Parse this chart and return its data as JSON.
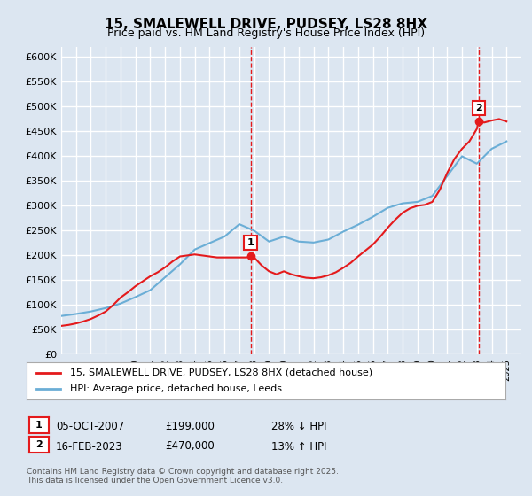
{
  "title": "15, SMALEWELL DRIVE, PUDSEY, LS28 8HX",
  "subtitle": "Price paid vs. HM Land Registry's House Price Index (HPI)",
  "xlabel": "",
  "ylabel": "",
  "ylim": [
    0,
    620000
  ],
  "yticks": [
    0,
    50000,
    100000,
    150000,
    200000,
    250000,
    300000,
    350000,
    400000,
    450000,
    500000,
    550000,
    600000
  ],
  "ytick_labels": [
    "£0",
    "£50K",
    "£100K",
    "£150K",
    "£200K",
    "£250K",
    "£300K",
    "£350K",
    "£400K",
    "£450K",
    "£500K",
    "£550K",
    "£600K"
  ],
  "background_color": "#dce6f1",
  "plot_bg_color": "#dce6f1",
  "grid_color": "#ffffff",
  "hpi_color": "#6baed6",
  "price_color": "#e41a1c",
  "annotation_box_color": "#e41a1c",
  "legend_label_price": "15, SMALEWELL DRIVE, PUDSEY, LS28 8HX (detached house)",
  "legend_label_hpi": "HPI: Average price, detached house, Leeds",
  "sale1_label": "1",
  "sale1_date": "05-OCT-2007",
  "sale1_price": "£199,000",
  "sale1_hpi": "28% ↓ HPI",
  "sale2_label": "2",
  "sale2_date": "16-FEB-2023",
  "sale2_price": "£470,000",
  "sale2_hpi": "13% ↑ HPI",
  "footer": "Contains HM Land Registry data © Crown copyright and database right 2025.\nThis data is licensed under the Open Government Licence v3.0.",
  "sale1_x": 2007.76,
  "sale1_y": 199000,
  "sale2_x": 2023.12,
  "sale2_y": 470000,
  "xmin": 1995,
  "xmax": 2026,
  "hpi_x": [
    1995,
    1996,
    1997,
    1998,
    1999,
    2000,
    2001,
    2002,
    2003,
    2004,
    2005,
    2006,
    2007,
    2008,
    2009,
    2010,
    2011,
    2012,
    2013,
    2014,
    2015,
    2016,
    2017,
    2018,
    2019,
    2020,
    2021,
    2022,
    2023,
    2024,
    2025
  ],
  "hpi_y": [
    78000,
    82000,
    87000,
    94000,
    103000,
    116000,
    130000,
    156000,
    182000,
    212000,
    225000,
    238000,
    263000,
    250000,
    228000,
    238000,
    228000,
    226000,
    232000,
    248000,
    262000,
    278000,
    296000,
    305000,
    308000,
    320000,
    360000,
    400000,
    385000,
    415000,
    430000
  ],
  "price_x": [
    1995.0,
    1995.5,
    1996.0,
    1996.5,
    1997.0,
    1997.5,
    1998.0,
    1998.5,
    1999.0,
    1999.5,
    2000.0,
    2000.5,
    2001.0,
    2001.5,
    2002.0,
    2002.5,
    2003.0,
    2003.5,
    2004.0,
    2004.5,
    2005.0,
    2005.5,
    2006.0,
    2006.5,
    2007.0,
    2007.5,
    2007.76,
    2008.0,
    2008.5,
    2009.0,
    2009.5,
    2010.0,
    2010.5,
    2011.0,
    2011.5,
    2012.0,
    2012.5,
    2013.0,
    2013.5,
    2014.0,
    2014.5,
    2015.0,
    2015.5,
    2016.0,
    2016.5,
    2017.0,
    2017.5,
    2018.0,
    2018.5,
    2019.0,
    2019.5,
    2020.0,
    2020.5,
    2021.0,
    2021.5,
    2022.0,
    2022.5,
    2023.0,
    2023.12,
    2023.5,
    2024.0,
    2024.5,
    2025.0
  ],
  "price_y": [
    58000,
    60000,
    63000,
    67000,
    72000,
    79000,
    87000,
    100000,
    115000,
    126000,
    138000,
    148000,
    158000,
    166000,
    176000,
    188000,
    198000,
    200000,
    202000,
    200000,
    198000,
    196000,
    196000,
    196000,
    196000,
    196000,
    199000,
    196000,
    180000,
    168000,
    162000,
    168000,
    162000,
    158000,
    155000,
    154000,
    156000,
    160000,
    166000,
    175000,
    185000,
    198000,
    210000,
    222000,
    238000,
    256000,
    272000,
    286000,
    295000,
    300000,
    302000,
    308000,
    332000,
    366000,
    395000,
    415000,
    430000,
    455000,
    470000,
    468000,
    472000,
    475000,
    470000
  ]
}
